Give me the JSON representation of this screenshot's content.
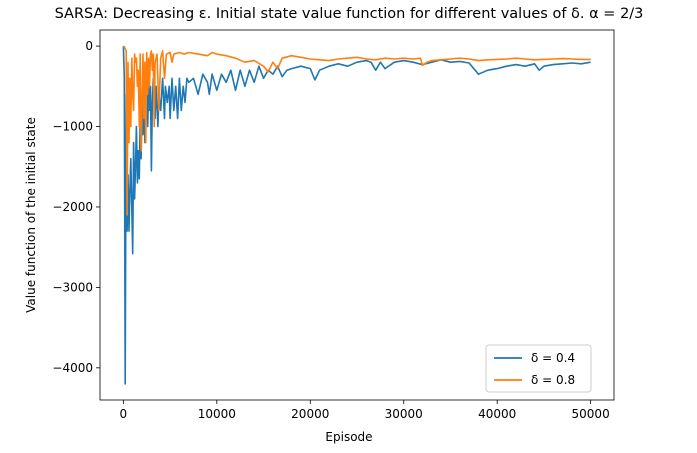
{
  "chart_data": {
    "type": "line",
    "title": "SARSA: Decreasing ε. Initial state value function for different values of δ. α = 2/3",
    "xlabel": "Episode",
    "ylabel": "Value function of the initial state",
    "xlim": [
      -2500,
      52500
    ],
    "ylim": [
      -4400,
      200
    ],
    "xticks": [
      0,
      10000,
      20000,
      30000,
      40000,
      50000
    ],
    "yticks": [
      0,
      -1000,
      -2000,
      -3000,
      -4000
    ],
    "legend_position": "lower right",
    "grid": false,
    "series": [
      {
        "name": "δ = 0.4",
        "color": "#1f77b4",
        "points": [
          [
            0,
            0
          ],
          [
            100,
            -400
          ],
          [
            200,
            -4200
          ],
          [
            300,
            -600
          ],
          [
            400,
            -2300
          ],
          [
            500,
            -1600
          ],
          [
            600,
            -2300
          ],
          [
            700,
            -1800
          ],
          [
            800,
            -1400
          ],
          [
            900,
            -2000
          ],
          [
            1000,
            -2580
          ],
          [
            1100,
            -1200
          ],
          [
            1200,
            -1900
          ],
          [
            1300,
            -1500
          ],
          [
            1400,
            -1000
          ],
          [
            1500,
            -1700
          ],
          [
            1600,
            -1300
          ],
          [
            1700,
            -1650
          ],
          [
            1800,
            -900
          ],
          [
            1900,
            -1400
          ],
          [
            2000,
            -700
          ],
          [
            2100,
            -1100
          ],
          [
            2200,
            -600
          ],
          [
            2300,
            -1200
          ],
          [
            2400,
            -900
          ],
          [
            2500,
            -600
          ],
          [
            2600,
            -1000
          ],
          [
            2700,
            -500
          ],
          [
            2800,
            -800
          ],
          [
            2900,
            -500
          ],
          [
            3000,
            -1550
          ],
          [
            3100,
            -700
          ],
          [
            3200,
            -400
          ],
          [
            3400,
            -900
          ],
          [
            3500,
            -500
          ],
          [
            3700,
            -1000
          ],
          [
            3800,
            -600
          ],
          [
            4000,
            -800
          ],
          [
            4200,
            -400
          ],
          [
            4400,
            -900
          ],
          [
            4500,
            -500
          ],
          [
            4700,
            -700
          ],
          [
            4900,
            -500
          ],
          [
            5000,
            -900
          ],
          [
            5200,
            -400
          ],
          [
            5400,
            -800
          ],
          [
            5600,
            -500
          ],
          [
            5800,
            -900
          ],
          [
            6000,
            -400
          ],
          [
            6200,
            -800
          ],
          [
            6400,
            -500
          ],
          [
            6600,
            -700
          ],
          [
            6800,
            -400
          ],
          [
            7000,
            -450
          ],
          [
            7500,
            -400
          ],
          [
            8000,
            -600
          ],
          [
            8500,
            -350
          ],
          [
            9000,
            -450
          ],
          [
            9200,
            -600
          ],
          [
            9500,
            -350
          ],
          [
            10000,
            -550
          ],
          [
            10500,
            -350
          ],
          [
            11000,
            -450
          ],
          [
            11500,
            -300
          ],
          [
            12000,
            -550
          ],
          [
            12500,
            -300
          ],
          [
            13000,
            -500
          ],
          [
            13500,
            -300
          ],
          [
            14000,
            -450
          ],
          [
            14500,
            -250
          ],
          [
            15000,
            -400
          ],
          [
            15500,
            -300
          ],
          [
            16000,
            -350
          ],
          [
            16500,
            -250
          ],
          [
            17000,
            -380
          ],
          [
            17500,
            -300
          ],
          [
            18000,
            -280
          ],
          [
            19000,
            -250
          ],
          [
            20000,
            -280
          ],
          [
            20500,
            -420
          ],
          [
            21000,
            -300
          ],
          [
            22000,
            -250
          ],
          [
            23000,
            -220
          ],
          [
            24000,
            -250
          ],
          [
            25000,
            -200
          ],
          [
            26000,
            -180
          ],
          [
            26500,
            -200
          ],
          [
            27000,
            -300
          ],
          [
            27500,
            -200
          ],
          [
            28000,
            -280
          ],
          [
            29000,
            -200
          ],
          [
            30000,
            -180
          ],
          [
            31000,
            -200
          ],
          [
            32000,
            -230
          ],
          [
            33000,
            -200
          ],
          [
            34000,
            -170
          ],
          [
            35000,
            -200
          ],
          [
            36000,
            -190
          ],
          [
            37000,
            -210
          ],
          [
            38000,
            -350
          ],
          [
            39000,
            -300
          ],
          [
            40000,
            -280
          ],
          [
            41000,
            -250
          ],
          [
            42000,
            -230
          ],
          [
            43000,
            -250
          ],
          [
            44000,
            -220
          ],
          [
            44500,
            -300
          ],
          [
            45000,
            -250
          ],
          [
            46000,
            -230
          ],
          [
            47000,
            -220
          ],
          [
            48000,
            -210
          ],
          [
            49000,
            -220
          ],
          [
            50000,
            -200
          ]
        ]
      },
      {
        "name": "δ = 0.8",
        "color": "#ff7f0e",
        "points": [
          [
            0,
            0
          ],
          [
            100,
            -10
          ],
          [
            200,
            -30
          ],
          [
            300,
            -60
          ],
          [
            400,
            -2100
          ],
          [
            500,
            -200
          ],
          [
            600,
            -1200
          ],
          [
            700,
            -400
          ],
          [
            800,
            -1000
          ],
          [
            900,
            -150
          ],
          [
            1000,
            -600
          ],
          [
            1100,
            -800
          ],
          [
            1200,
            -100
          ],
          [
            1300,
            -200
          ],
          [
            1400,
            -150
          ],
          [
            1500,
            -500
          ],
          [
            1600,
            -300
          ],
          [
            1700,
            -1000
          ],
          [
            1800,
            -100
          ],
          [
            1900,
            -1300
          ],
          [
            2000,
            -700
          ],
          [
            2100,
            -100
          ],
          [
            2200,
            -900
          ],
          [
            2300,
            -200
          ],
          [
            2400,
            -1200
          ],
          [
            2500,
            -80
          ],
          [
            2600,
            -600
          ],
          [
            2700,
            -150
          ],
          [
            2800,
            -500
          ],
          [
            2900,
            -100
          ],
          [
            3000,
            -60
          ],
          [
            3100,
            -300
          ],
          [
            3200,
            -100
          ],
          [
            3300,
            -1000
          ],
          [
            3400,
            -200
          ],
          [
            3600,
            -100
          ],
          [
            3800,
            -800
          ],
          [
            4000,
            -150
          ],
          [
            4200,
            -60
          ],
          [
            4400,
            -400
          ],
          [
            4600,
            -100
          ],
          [
            5000,
            -80
          ],
          [
            5200,
            -200
          ],
          [
            5400,
            -100
          ],
          [
            6000,
            -80
          ],
          [
            6500,
            -100
          ],
          [
            7000,
            -80
          ],
          [
            8000,
            -100
          ],
          [
            9000,
            -120
          ],
          [
            9500,
            -80
          ],
          [
            10000,
            -100
          ],
          [
            11000,
            -120
          ],
          [
            12000,
            -150
          ],
          [
            13000,
            -200
          ],
          [
            14000,
            -180
          ],
          [
            15000,
            -250
          ],
          [
            15500,
            -320
          ],
          [
            16000,
            -200
          ],
          [
            16500,
            -280
          ],
          [
            17000,
            -150
          ],
          [
            18000,
            -120
          ],
          [
            19000,
            -140
          ],
          [
            20000,
            -160
          ],
          [
            21000,
            -170
          ],
          [
            22000,
            -180
          ],
          [
            23000,
            -160
          ],
          [
            24000,
            -150
          ],
          [
            25000,
            -140
          ],
          [
            26000,
            -160
          ],
          [
            27000,
            -170
          ],
          [
            28000,
            -150
          ],
          [
            29000,
            -160
          ],
          [
            30000,
            -150
          ],
          [
            31000,
            -160
          ],
          [
            31800,
            -150
          ],
          [
            32000,
            -240
          ],
          [
            32500,
            -200
          ],
          [
            33000,
            -180
          ],
          [
            34000,
            -170
          ],
          [
            35000,
            -160
          ],
          [
            36000,
            -150
          ],
          [
            37000,
            -160
          ],
          [
            38000,
            -180
          ],
          [
            39000,
            -170
          ],
          [
            40000,
            -165
          ],
          [
            41000,
            -160
          ],
          [
            42000,
            -150
          ],
          [
            43000,
            -160
          ],
          [
            44000,
            -170
          ],
          [
            45000,
            -165
          ],
          [
            46000,
            -160
          ],
          [
            47000,
            -155
          ],
          [
            48000,
            -160
          ],
          [
            49000,
            -165
          ],
          [
            50000,
            -165
          ]
        ]
      }
    ]
  }
}
